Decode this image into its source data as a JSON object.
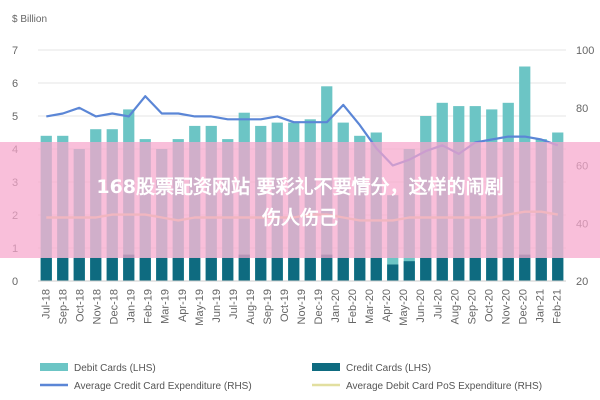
{
  "chart_data": {
    "type": "bar",
    "y_left_unit": "$ Billion",
    "y_left_ticks": [
      "0",
      "1",
      "2",
      "3",
      "4",
      "5",
      "6",
      "7"
    ],
    "y_left_range": [
      0,
      7
    ],
    "y_right_ticks": [
      "20",
      "40",
      "60",
      "80",
      "100"
    ],
    "y_right_range": [
      20,
      100
    ],
    "categories": [
      "Jul-18",
      "Aug-18",
      "Sep-18",
      "Oct-18",
      "Nov-18",
      "Dec-18",
      "Jan-19",
      "Feb-19",
      "Mar-19",
      "Apr-19",
      "May-19",
      "Jun-19",
      "Jul-19",
      "Aug-19",
      "Sep-19",
      "Oct-19",
      "Nov-19",
      "Dec-19",
      "Jan-20",
      "Feb-20",
      "Mar-20",
      "Apr-20",
      "May-20",
      "Jun-20",
      "Jul-20",
      "Aug-20",
      "Sep-20",
      "Oct-20",
      "Nov-20",
      "Dec-20",
      "Jan-21",
      "Feb-21"
    ],
    "x_tick_labels": [
      "Jul-18",
      "Sep-18",
      "Oct-18",
      "Nov-18",
      "Dec-18",
      "Jan-19",
      "Feb-19",
      "Mar-19",
      "Apr-19",
      "May-19",
      "Jun-19",
      "Jul-19",
      "Aug-19",
      "Sep-19",
      "Oct-19",
      "Nov-19",
      "Dec-19",
      "Jan-20",
      "Feb-20",
      "Mar-20",
      "Apr-20",
      "May-20",
      "Jun-20",
      "Jul-20",
      "Aug-20",
      "Sep-20",
      "Oct-20",
      "Nov-20",
      "Dec-20",
      "Jan-21",
      "Feb-21"
    ],
    "series": [
      {
        "name": "Debit Cards (LHS)",
        "axis": "left",
        "kind": "bar",
        "color": "#6cc5c5",
        "values": [
          4.4,
          4.4,
          4.0,
          4.6,
          4.6,
          5.2,
          4.3,
          4.0,
          4.3,
          4.7,
          4.7,
          4.3,
          5.1,
          4.7,
          4.8,
          4.8,
          4.9,
          5.9,
          4.8,
          4.4,
          4.5,
          2.6,
          4.0,
          5.0,
          5.4,
          5.3,
          5.3,
          5.2,
          5.4,
          6.5,
          4.3,
          4.5
        ]
      },
      {
        "name": "Credit Cards (LHS)",
        "axis": "left",
        "kind": "bar",
        "color": "#0e6b80",
        "values": [
          0.7,
          0.7,
          0.7,
          0.7,
          0.7,
          0.8,
          0.7,
          0.7,
          0.7,
          0.7,
          0.7,
          0.7,
          0.8,
          0.7,
          0.7,
          0.7,
          0.7,
          0.8,
          0.7,
          0.7,
          0.7,
          0.5,
          0.6,
          0.7,
          0.7,
          0.7,
          0.7,
          0.7,
          0.7,
          0.8,
          0.7,
          0.7
        ]
      },
      {
        "name": "Average Credit Card Expenditure (RHS)",
        "axis": "right",
        "kind": "line",
        "color": "#5b86d6",
        "values": [
          77,
          78,
          80,
          77,
          78,
          77,
          84,
          78,
          78,
          77,
          77,
          76,
          76,
          76,
          77,
          75,
          75,
          75,
          81,
          74,
          66,
          60,
          62,
          65,
          67,
          64,
          68,
          69,
          70,
          70,
          69,
          67
        ]
      },
      {
        "name": "Average Debit Card PoS Expenditure (RHS)",
        "axis": "right",
        "kind": "line",
        "color": "#e2dfa0",
        "values": [
          42,
          42,
          42,
          42,
          43,
          43,
          43,
          42,
          41,
          42,
          42,
          42,
          42,
          42,
          42,
          42,
          43,
          43,
          42,
          41,
          41,
          41,
          42,
          42,
          42,
          42,
          42,
          42,
          43,
          44,
          44,
          43
        ]
      }
    ],
    "legend_position": "bottom",
    "grid": true
  },
  "overlay": {
    "color": "#f7a6cc",
    "text_line1": "168股票配资网站 要彩礼不要情分，这样的闹剧",
    "text_line2": "伤人伤己"
  }
}
